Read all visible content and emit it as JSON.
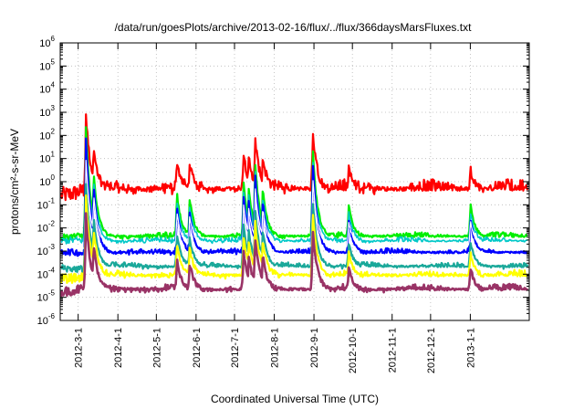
{
  "chart_data": {
    "type": "line",
    "title": "/data/run/goesPlots/archive/2013-02-16/flux/../flux/366daysMarsFluxes.txt",
    "xlabel": "Coordinated Universal Time (UTC)",
    "ylabel": "protons/cm²-s-sr-MeV",
    "y_scale": "log",
    "ylim": [
      1e-06,
      1000000.0
    ],
    "xlim": [
      "2012-02-16",
      "2013-02-16"
    ],
    "grid": true,
    "legend": "none",
    "y_ticks": [
      {
        "base": "10",
        "exp": "-6"
      },
      {
        "base": "10",
        "exp": "-5"
      },
      {
        "base": "10",
        "exp": "-4"
      },
      {
        "base": "10",
        "exp": "-3"
      },
      {
        "base": "10",
        "exp": "-2"
      },
      {
        "base": "10",
        "exp": "-1"
      },
      {
        "base": "10",
        "exp": "0"
      },
      {
        "base": "10",
        "exp": "1"
      },
      {
        "base": "10",
        "exp": "2"
      },
      {
        "base": "10",
        "exp": "3"
      },
      {
        "base": "10",
        "exp": "4"
      },
      {
        "base": "10",
        "exp": "5"
      },
      {
        "base": "10",
        "exp": "6"
      }
    ],
    "x_ticks": [
      "2012-3-1",
      "2012-4-1",
      "2012-5-1",
      "2012-6-1",
      "2012-7-1",
      "2012-8-1",
      "2012-9-1",
      "2012-10-1",
      "2012-11-1",
      "2012-12-1",
      "2013-1-1"
    ],
    "events": [
      {
        "date": "2012-03-07",
        "magnitude": 1.0
      },
      {
        "date": "2012-03-13",
        "magnitude": 0.6
      },
      {
        "date": "2012-05-17",
        "magnitude": 0.4
      },
      {
        "date": "2012-05-27",
        "magnitude": 0.35
      },
      {
        "date": "2012-07-08",
        "magnitude": 0.5
      },
      {
        "date": "2012-07-12",
        "magnitude": 0.45
      },
      {
        "date": "2012-07-17",
        "magnitude": 0.7
      },
      {
        "date": "2012-07-23",
        "magnitude": 0.45
      },
      {
        "date": "2012-08-31",
        "magnitude": 0.8
      },
      {
        "date": "2012-09-28",
        "magnitude": 0.3
      },
      {
        "date": "2013-01-01",
        "magnitude": 0.3
      }
    ],
    "series": [
      {
        "color": "#ff0000",
        "base": 0.4,
        "peak": 1000,
        "noise": 0.35,
        "width": 2.2
      },
      {
        "color": "#00ee00",
        "base": 0.004,
        "peak": 300,
        "noise": 0.15,
        "width": 2.2
      },
      {
        "color": "#00c8c8",
        "base": 0.0025,
        "peak": 100,
        "noise": 0.15,
        "width": 1.6
      },
      {
        "color": "#0000ff",
        "base": 0.0008,
        "peak": 100,
        "noise": 0.15,
        "width": 2.2
      },
      {
        "color": "#ffffff",
        "base": 0.0015,
        "peak": 10,
        "noise": 0.08,
        "width": 1.2
      },
      {
        "color": "#1aa89a",
        "base": 0.0002,
        "peak": 1,
        "noise": 0.15,
        "width": 2.2
      },
      {
        "color": "#ffff00",
        "base": 8e-05,
        "peak": 0.3,
        "noise": 0.2,
        "width": 2.2
      },
      {
        "color": "#993366",
        "base": 2e-05,
        "peak": 0.05,
        "noise": 0.2,
        "width": 2.6
      }
    ]
  }
}
